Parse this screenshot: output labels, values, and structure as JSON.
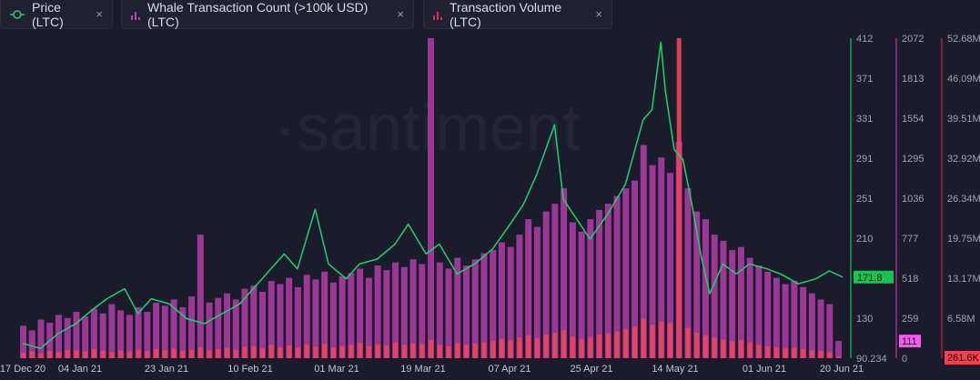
{
  "legend": [
    {
      "label": "Price (LTC)",
      "icon": "line-circle-icon",
      "color": "#1fd16a",
      "close": "×"
    },
    {
      "label": "Whale Transaction Count (>100k USD) (LTC)",
      "icon": "bar-chart-icon",
      "color": "#c13fb3",
      "close": "×"
    },
    {
      "label": "Transaction Volume (LTC)",
      "icon": "bar-chart-icon",
      "color": "#d6354a",
      "close": "×"
    }
  ],
  "watermark": "·santiment",
  "chart_data": {
    "type": "line+bar",
    "x_tick_labels": [
      "17 Dec 20",
      "04 Jan 21",
      "23 Jan 21",
      "10 Feb 21",
      "01 Mar 21",
      "19 Mar 21",
      "07 Apr 21",
      "25 Apr 21",
      "14 May 21",
      "01 Jun 21",
      "20 Jun 21"
    ],
    "x_range": [
      "2020-12-17",
      "2021-06-20"
    ],
    "grid": false,
    "axes": {
      "price": {
        "ticks": [
          "412",
          "371",
          "331",
          "291",
          "251",
          "210",
          "130",
          "90.234"
        ],
        "range": [
          90.234,
          412
        ],
        "color": "#1fd16a",
        "last_value": "171.8"
      },
      "whale": {
        "ticks": [
          "2072",
          "1813",
          "1554",
          "1295",
          "1036",
          "777",
          "518",
          "259",
          "0"
        ],
        "range": [
          0,
          2072
        ],
        "color": "#c13fb3",
        "last_value": "111"
      },
      "volume": {
        "ticks": [
          "52.68M",
          "46.09M",
          "39.51M",
          "32.92M",
          "26.34M",
          "19.75M",
          "13.17M",
          "6.58M"
        ],
        "range": [
          0,
          52.68
        ],
        "unit": "M",
        "color": "#d6354a",
        "last_value": "261.6K"
      }
    },
    "series": [
      {
        "name": "Price (LTC)",
        "type": "line",
        "color": "#1fd16a",
        "points": [
          [
            "2020-12-17",
            105
          ],
          [
            "2020-12-21",
            100
          ],
          [
            "2020-12-25",
            115
          ],
          [
            "2020-12-29",
            125
          ],
          [
            "2021-01-02",
            140
          ],
          [
            "2021-01-05",
            150
          ],
          [
            "2021-01-09",
            160
          ],
          [
            "2021-01-12",
            135
          ],
          [
            "2021-01-15",
            150
          ],
          [
            "2021-01-19",
            145
          ],
          [
            "2021-01-23",
            130
          ],
          [
            "2021-01-27",
            125
          ],
          [
            "2021-01-31",
            135
          ],
          [
            "2021-02-04",
            145
          ],
          [
            "2021-02-08",
            165
          ],
          [
            "2021-02-11",
            180
          ],
          [
            "2021-02-14",
            195
          ],
          [
            "2021-02-17",
            180
          ],
          [
            "2021-02-21",
            240
          ],
          [
            "2021-02-24",
            185
          ],
          [
            "2021-02-28",
            170
          ],
          [
            "2021-03-03",
            185
          ],
          [
            "2021-03-07",
            190
          ],
          [
            "2021-03-11",
            205
          ],
          [
            "2021-03-14",
            225
          ],
          [
            "2021-03-18",
            195
          ],
          [
            "2021-03-21",
            205
          ],
          [
            "2021-03-25",
            175
          ],
          [
            "2021-03-29",
            185
          ],
          [
            "2021-04-02",
            200
          ],
          [
            "2021-04-06",
            225
          ],
          [
            "2021-04-09",
            245
          ],
          [
            "2021-04-12",
            275
          ],
          [
            "2021-04-16",
            325
          ],
          [
            "2021-04-18",
            250
          ],
          [
            "2021-04-21",
            230
          ],
          [
            "2021-04-24",
            210
          ],
          [
            "2021-04-28",
            235
          ],
          [
            "2021-05-02",
            265
          ],
          [
            "2021-05-06",
            330
          ],
          [
            "2021-05-08",
            340
          ],
          [
            "2021-05-10",
            408
          ],
          [
            "2021-05-11",
            360
          ],
          [
            "2021-05-13",
            300
          ],
          [
            "2021-05-15",
            290
          ],
          [
            "2021-05-17",
            245
          ],
          [
            "2021-05-19",
            195
          ],
          [
            "2021-05-21",
            155
          ],
          [
            "2021-05-24",
            185
          ],
          [
            "2021-05-27",
            175
          ],
          [
            "2021-05-30",
            185
          ],
          [
            "2021-06-03",
            180
          ],
          [
            "2021-06-06",
            175
          ],
          [
            "2021-06-10",
            165
          ],
          [
            "2021-06-14",
            170
          ],
          [
            "2021-06-17",
            178
          ],
          [
            "2021-06-20",
            171.8
          ]
        ]
      },
      {
        "name": "Whale Transaction Count (>100k USD) (LTC)",
        "type": "bar",
        "color": "#b23ca8",
        "start": "2020-12-17",
        "step_days": 2,
        "values": [
          210,
          180,
          250,
          230,
          280,
          260,
          300,
          270,
          320,
          290,
          350,
          310,
          280,
          330,
          300,
          360,
          340,
          380,
          330,
          400,
          800,
          360,
          390,
          420,
          380,
          450,
          470,
          430,
          500,
          480,
          520,
          460,
          540,
          510,
          560,
          490,
          530,
          550,
          580,
          520,
          600,
          570,
          620,
          590,
          640,
          610,
          2072,
          620,
          580,
          650,
          600,
          640,
          680,
          700,
          750,
          720,
          800,
          900,
          850,
          950,
          1000,
          1100,
          880,
          820,
          900,
          960,
          1000,
          1050,
          1100,
          1150,
          1380,
          1250,
          1300,
          1200,
          1400,
          1100,
          950,
          900,
          800,
          760,
          700,
          720,
          650,
          600,
          560,
          520,
          480,
          500,
          460,
          420,
          380,
          350,
          111
        ]
      },
      {
        "name": "Transaction Volume (LTC)",
        "type": "bar",
        "color": "#f0445a",
        "start": "2020-12-17",
        "step_days": 2,
        "unit": "M",
        "values": [
          0.9,
          1.1,
          0.8,
          1.2,
          1.0,
          1.4,
          1.3,
          1.1,
          1.5,
          1.2,
          1.0,
          1.3,
          1.1,
          1.4,
          1.2,
          1.5,
          1.3,
          1.6,
          1.2,
          1.4,
          1.8,
          1.3,
          1.5,
          1.7,
          1.4,
          1.9,
          2.0,
          1.6,
          2.2,
          1.8,
          2.1,
          1.7,
          2.3,
          1.9,
          2.4,
          1.8,
          2.0,
          2.2,
          2.5,
          2.0,
          2.3,
          2.1,
          2.6,
          2.2,
          2.4,
          2.3,
          3.0,
          2.2,
          2.0,
          2.5,
          2.2,
          2.4,
          2.6,
          2.8,
          3.2,
          2.9,
          3.4,
          3.8,
          3.3,
          3.9,
          4.2,
          4.6,
          3.6,
          3.2,
          3.5,
          3.9,
          4.1,
          4.4,
          4.8,
          5.2,
          6.5,
          5.5,
          6.0,
          5.8,
          52.68,
          5.0,
          4.2,
          3.8,
          3.4,
          3.1,
          2.8,
          3.0,
          2.6,
          2.2,
          2.0,
          1.8,
          1.6,
          1.7,
          1.5,
          1.3,
          1.2,
          1.0,
          0.2616
        ]
      }
    ]
  }
}
